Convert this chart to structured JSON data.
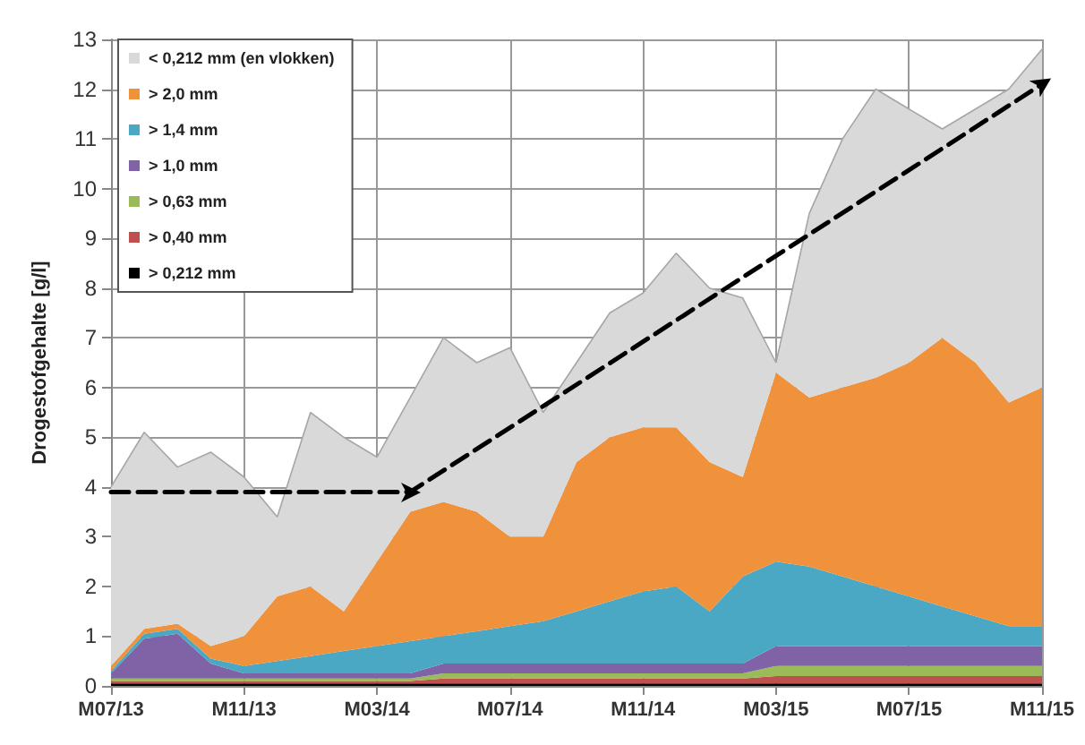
{
  "chart_data": {
    "type": "area",
    "stacked": true,
    "ylabel": "Drogestofgehalte [g/l]",
    "categories": [
      "M07/13",
      null,
      null,
      null,
      "M11/13",
      null,
      null,
      null,
      "M03/14",
      null,
      null,
      null,
      "M07/14",
      null,
      null,
      null,
      "M11/14",
      null,
      null,
      null,
      "M03/15",
      null,
      null,
      null,
      "M07/15",
      null,
      null,
      null,
      "M11/15"
    ],
    "ylim": [
      0,
      13
    ],
    "yticks": [
      0,
      1,
      2,
      3,
      4,
      5,
      6,
      7,
      8,
      9,
      10,
      11,
      12,
      13
    ],
    "grid": true,
    "legend": "top left",
    "series": [
      {
        "name": "> 0,212 mm",
        "color": "#000000",
        "values": [
          0.05,
          0.05,
          0.05,
          0.05,
          0.05,
          0.05,
          0.05,
          0.05,
          0.05,
          0.05,
          0.05,
          0.05,
          0.05,
          0.05,
          0.05,
          0.05,
          0.05,
          0.05,
          0.05,
          0.05,
          0.05,
          0.05,
          0.05,
          0.05,
          0.05,
          0.05,
          0.05,
          0.05,
          0.05
        ]
      },
      {
        "name": "> 0,40 mm",
        "color": "#c0504d",
        "values": [
          0.05,
          0.05,
          0.05,
          0.05,
          0.05,
          0.05,
          0.05,
          0.05,
          0.05,
          0.05,
          0.1,
          0.1,
          0.1,
          0.1,
          0.1,
          0.1,
          0.1,
          0.1,
          0.1,
          0.1,
          0.15,
          0.15,
          0.15,
          0.15,
          0.15,
          0.15,
          0.15,
          0.15,
          0.15
        ]
      },
      {
        "name": "> 0,63 mm",
        "color": "#9bbb59",
        "values": [
          0.05,
          0.05,
          0.05,
          0.05,
          0.05,
          0.05,
          0.05,
          0.05,
          0.05,
          0.05,
          0.1,
          0.1,
          0.1,
          0.1,
          0.1,
          0.1,
          0.1,
          0.1,
          0.1,
          0.1,
          0.2,
          0.2,
          0.2,
          0.2,
          0.2,
          0.2,
          0.2,
          0.2,
          0.2
        ]
      },
      {
        "name": "> 1,0 mm",
        "color": "#7f63a6",
        "values": [
          0.1,
          0.8,
          0.9,
          0.3,
          0.1,
          0.1,
          0.1,
          0.1,
          0.1,
          0.1,
          0.2,
          0.2,
          0.2,
          0.2,
          0.2,
          0.2,
          0.2,
          0.2,
          0.2,
          0.2,
          0.4,
          0.4,
          0.4,
          0.4,
          0.4,
          0.4,
          0.4,
          0.4,
          0.4
        ]
      },
      {
        "name": "> 1,4 mm",
        "color": "#4aa8c4",
        "values": [
          0.05,
          0.1,
          0.1,
          0.1,
          0.15,
          0.25,
          0.35,
          0.45,
          0.55,
          0.65,
          0.55,
          0.65,
          0.75,
          0.85,
          1.05,
          1.25,
          1.45,
          1.55,
          1.05,
          1.75,
          1.7,
          1.6,
          1.4,
          1.2,
          1.0,
          0.8,
          0.6,
          0.4,
          0.4
        ]
      },
      {
        "name": "> 2,0 mm",
        "color": "#f0923c",
        "values": [
          0.1,
          0.1,
          0.1,
          0.25,
          0.6,
          1.3,
          1.4,
          0.8,
          1.7,
          2.6,
          2.7,
          2.4,
          1.8,
          1.7,
          3.0,
          3.3,
          3.3,
          3.2,
          3.0,
          2.0,
          3.8,
          3.4,
          3.8,
          4.2,
          4.7,
          5.4,
          5.1,
          4.5,
          4.8
        ]
      },
      {
        "name": "< 0,212 mm (en vlokken)",
        "color": "#d9d9d9",
        "values": [
          3.6,
          3.95,
          3.15,
          3.9,
          3.2,
          1.6,
          3.5,
          3.5,
          2.1,
          2.3,
          3.3,
          3.0,
          3.8,
          2.5,
          2.0,
          2.5,
          2.7,
          3.5,
          3.5,
          3.6,
          0.2,
          3.7,
          5.0,
          5.8,
          5.1,
          4.2,
          5.1,
          6.3,
          6.8
        ]
      },
      {
        "type": "line",
        "color": "#000000",
        "line_style": "dashed",
        "values": [
          3.9,
          null,
          null,
          null,
          null,
          null,
          null,
          null,
          null,
          3.9,
          null,
          null,
          null,
          null,
          null,
          null,
          null,
          null,
          null,
          null,
          null,
          null,
          null,
          null,
          null,
          null,
          null,
          null,
          12.1
        ]
      }
    ]
  }
}
